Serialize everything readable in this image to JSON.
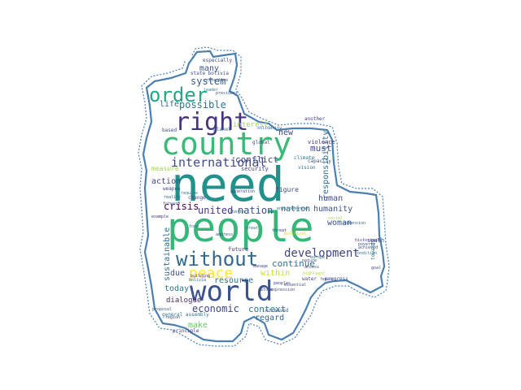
{
  "outline_color": "#4a7fb0",
  "words": [
    {
      "text": "need",
      "color": "#21918c"
    },
    {
      "text": "people",
      "color": "#35b779"
    },
    {
      "text": "country",
      "color": "#3aba76"
    },
    {
      "text": "world",
      "color": "#3b528b"
    },
    {
      "text": "right",
      "color": "#46337e"
    },
    {
      "text": "order",
      "color": "#22a884"
    },
    {
      "text": "without",
      "color": "#31688e"
    },
    {
      "text": "peace",
      "color": "#fde725"
    },
    {
      "text": "international",
      "color": "#3e4a89"
    },
    {
      "text": "development",
      "color": "#414487"
    },
    {
      "text": "united",
      "color": "#443983"
    },
    {
      "text": "nation",
      "color": "#3b528b"
    },
    {
      "text": "crisis",
      "color": "#440154"
    },
    {
      "text": "system",
      "color": "#355f8d"
    },
    {
      "text": "possible",
      "color": "#2c728e"
    },
    {
      "text": "life",
      "color": "#31688e"
    },
    {
      "text": "economic",
      "color": "#3e4989"
    },
    {
      "text": "context",
      "color": "#2a788e"
    },
    {
      "text": "continue",
      "color": "#2e6e8e"
    },
    {
      "text": "resource",
      "color": "#2c728e"
    },
    {
      "text": "within",
      "color": "#c2df23"
    },
    {
      "text": "regard",
      "color": "#31688e"
    },
    {
      "text": "make",
      "color": "#5ec962"
    },
    {
      "text": "today",
      "color": "#2a788e"
    },
    {
      "text": "dialogue",
      "color": "#482878"
    },
    {
      "text": "sustainable",
      "color": "#2f6c8e"
    },
    {
      "text": "due",
      "color": "#3b528b"
    },
    {
      "text": "action",
      "color": "#414487"
    },
    {
      "text": "nation",
      "color": "#355f8d"
    },
    {
      "text": "human",
      "color": "#3e4a89"
    },
    {
      "text": "humanity",
      "color": "#3b528b"
    },
    {
      "text": "woman",
      "color": "#3b528b"
    },
    {
      "text": "must",
      "color": "#3e4989"
    },
    {
      "text": "conflict",
      "color": "#3e4989"
    },
    {
      "text": "interest",
      "color": "#9fda3a"
    },
    {
      "text": "responsibility",
      "color": "#2d708e"
    },
    {
      "text": "measure",
      "color": "#a0da39"
    },
    {
      "text": "many",
      "color": "#3b528b"
    },
    {
      "text": "new",
      "color": "#414487"
    },
    {
      "text": "violence",
      "color": "#46327e"
    },
    {
      "text": "security",
      "color": "#443a83"
    },
    {
      "text": "climate",
      "color": "#2c728e"
    },
    {
      "text": "change",
      "color": "#414487"
    },
    {
      "text": "figure",
      "color": "#3e4a89"
    },
    {
      "text": "especially",
      "color": "#404688"
    },
    {
      "text": "state bolivia",
      "color": "#3e4a89"
    },
    {
      "text": "south",
      "color": "#3b528b"
    },
    {
      "text": "future",
      "color": "#453781"
    },
    {
      "text": "general assembly",
      "color": "#2a788e"
    },
    {
      "text": "principle",
      "color": "#46337e"
    },
    {
      "text": "global",
      "color": "#3e4a89"
    },
    {
      "text": "planet",
      "color": "#31688e"
    },
    {
      "text": "based",
      "color": "#3e4989"
    },
    {
      "text": "vision",
      "color": "#2c728e"
    },
    {
      "text": "progress",
      "color": "#3b528b"
    },
    {
      "text": "weapon",
      "color": "#3e4989"
    },
    {
      "text": "increased",
      "color": "#2e6e8e"
    },
    {
      "text": "towards",
      "color": "#2a788e"
    },
    {
      "text": "capacity",
      "color": "#3b528b"
    },
    {
      "text": "another",
      "color": "#404688"
    },
    {
      "text": "water",
      "color": "#3e4989"
    },
    {
      "text": "food",
      "color": "#2c728e"
    },
    {
      "text": "address",
      "color": "#3e4a89"
    },
    {
      "text": "building",
      "color": "#443983"
    },
    {
      "text": "proposal",
      "color": "#355f8d"
    },
    {
      "text": "solidarity",
      "color": "#31688e"
    },
    {
      "text": "leader",
      "color": "#2a788e"
    },
    {
      "text": "threat",
      "color": "#46337e"
    },
    {
      "text": "collective",
      "color": "#3b528b"
    },
    {
      "text": "goal",
      "color": "#3e4989"
    },
    {
      "text": "generation",
      "color": "#414487"
    },
    {
      "text": "charter",
      "color": "#31688e"
    },
    {
      "text": "president",
      "color": "#355f8d"
    },
    {
      "text": "bolivia",
      "color": "#2c728e"
    },
    {
      "text": "region",
      "color": "#3e4a89"
    },
    {
      "text": "poverty",
      "color": "#3b528b"
    },
    {
      "text": "environmental",
      "color": "#2a788e"
    },
    {
      "text": "historical",
      "color": "#46337e"
    },
    {
      "text": "achieved",
      "color": "#3e4989"
    },
    {
      "text": "manage",
      "color": "#404688"
    },
    {
      "text": "great",
      "color": "#31688e"
    },
    {
      "text": "political",
      "color": "#c5e021"
    },
    {
      "text": "nature",
      "color": "#3b528b"
    },
    {
      "text": "highlight",
      "color": "#b5de2b"
    },
    {
      "text": "access",
      "color": "#3e4a89"
    },
    {
      "text": "europe",
      "color": "#2c728e"
    },
    {
      "text": "peoples",
      "color": "#414487"
    },
    {
      "text": "example",
      "color": "#46337e"
    },
    {
      "text": "house",
      "color": "#3e4989"
    },
    {
      "text": "social",
      "color": "#a8db34"
    },
    {
      "text": "dimension",
      "color": "#31688e"
    },
    {
      "text": "condition",
      "color": "#2a788e"
    },
    {
      "text": "forward",
      "color": "#3b528b"
    },
    {
      "text": "reform",
      "color": "#3e4a89"
    },
    {
      "text": "require",
      "color": "#2c728e"
    },
    {
      "text": "essential",
      "color": "#404688"
    },
    {
      "text": "reality",
      "color": "#31688e"
    },
    {
      "text": "expression",
      "color": "#3e4989"
    }
  ]
}
